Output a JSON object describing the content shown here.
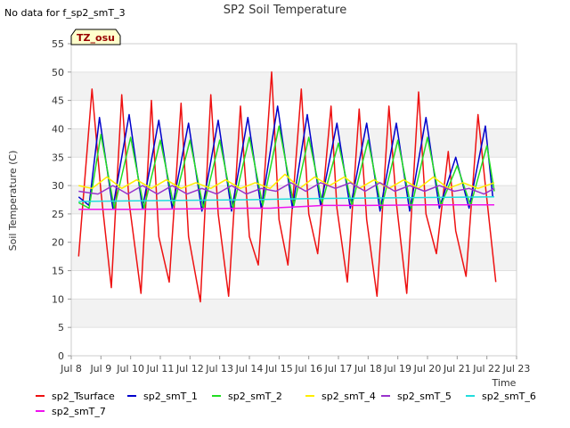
{
  "chart_data": {
    "type": "line",
    "title": "SP2 Soil Temperature",
    "note": "No data for f_sp2_smT_3",
    "badge": "TZ_osu",
    "xlabel": "Time",
    "ylabel": "Soil Temperature (C)",
    "xlim": [
      8,
      23
    ],
    "ylim": [
      0,
      55
    ],
    "x_ticks": [
      8,
      9,
      10,
      11,
      12,
      13,
      14,
      15,
      16,
      17,
      18,
      19,
      20,
      21,
      22,
      23
    ],
    "x_tick_labels": [
      "Jul 8",
      "Jul 9",
      "Jul 10",
      "Jul 11",
      "Jul 12",
      "Jul 13",
      "Jul 14",
      "Jul 15",
      "Jul 16",
      "Jul 17",
      "Jul 18",
      "Jul 19",
      "Jul 20",
      "Jul 21",
      "Jul 22",
      "Jul 23"
    ],
    "y_ticks": [
      0,
      5,
      10,
      15,
      20,
      25,
      30,
      35,
      40,
      45,
      50,
      55
    ],
    "y_tick_labels": [
      "0",
      "5",
      "10",
      "15",
      "20",
      "25",
      "30",
      "35",
      "40",
      "45",
      "50",
      "55"
    ],
    "grid": "horizontal bands",
    "legend_position": "bottom",
    "series": [
      {
        "name": "sp2_Tsurface",
        "color": "#ee1111",
        "x": [
          8.25,
          8.7,
          9.0,
          9.35,
          9.7,
          9.95,
          10.35,
          10.7,
          10.95,
          11.3,
          11.7,
          11.95,
          12.35,
          12.7,
          12.95,
          13.3,
          13.7,
          14.0,
          14.3,
          14.75,
          15.0,
          15.3,
          15.75,
          16.0,
          16.3,
          16.75,
          16.95,
          17.3,
          17.7,
          17.95,
          18.3,
          18.7,
          18.95,
          19.3,
          19.7,
          19.95,
          20.3,
          20.7,
          20.95,
          21.3,
          21.7,
          21.95,
          22.3
        ],
        "y": [
          17.5,
          47,
          29,
          12,
          46,
          27,
          11,
          45,
          21,
          13,
          44.5,
          21,
          9.5,
          46,
          25,
          10.5,
          44,
          21,
          16,
          50,
          24,
          16,
          47,
          25,
          18,
          44,
          26,
          13,
          43.5,
          24,
          10.5,
          44,
          27,
          11,
          46.5,
          25,
          18,
          36,
          22,
          14,
          42.5,
          30,
          13
        ]
      },
      {
        "name": "sp2_smT_1",
        "color": "#0000cc",
        "x": [
          8.25,
          8.6,
          8.95,
          9.4,
          9.95,
          10.4,
          10.95,
          11.4,
          11.95,
          12.4,
          12.95,
          13.4,
          13.95,
          14.4,
          14.95,
          15.45,
          15.95,
          16.4,
          16.95,
          17.4,
          17.95,
          18.4,
          18.95,
          19.4,
          19.95,
          20.4,
          20.95,
          21.4,
          21.95,
          22.2
        ],
        "y": [
          28,
          26.5,
          42,
          26,
          42.5,
          26,
          41.5,
          26,
          41,
          25.5,
          41.5,
          25.5,
          42,
          26,
          44,
          26,
          42.5,
          26.5,
          41,
          26,
          41,
          25.5,
          41,
          25.5,
          42,
          26,
          35,
          26,
          40.5,
          28
        ]
      },
      {
        "name": "sp2_smT_2",
        "color": "#22dd22",
        "x": [
          8.25,
          8.6,
          9.0,
          9.45,
          10.0,
          10.45,
          11.0,
          11.45,
          12.0,
          12.45,
          13.0,
          13.45,
          14.0,
          14.45,
          15.0,
          15.5,
          16.0,
          16.45,
          17.0,
          17.45,
          18.0,
          18.45,
          19.0,
          19.45,
          20.0,
          20.45,
          21.0,
          21.45,
          22.0,
          22.25
        ],
        "y": [
          27,
          26,
          39,
          26,
          38.5,
          26,
          38,
          26.5,
          38,
          26,
          38,
          26,
          38.5,
          26.5,
          40.5,
          26.5,
          38.5,
          27,
          37.5,
          26.5,
          38,
          26,
          38,
          26,
          38.5,
          26.5,
          33.5,
          26.5,
          37,
          29
        ]
      },
      {
        "name": "sp2_smT_4",
        "color": "#ffee00",
        "x": [
          8.25,
          8.7,
          9.2,
          9.7,
          10.2,
          10.7,
          11.2,
          11.7,
          12.2,
          12.7,
          13.2,
          13.7,
          14.2,
          14.7,
          15.2,
          15.7,
          16.2,
          16.7,
          17.2,
          17.7,
          18.2,
          18.7,
          19.2,
          19.7,
          20.2,
          20.7,
          21.2,
          21.7,
          22.25
        ],
        "y": [
          30,
          29.5,
          31.5,
          29.5,
          31,
          29.5,
          31,
          29.5,
          30.5,
          29.5,
          31,
          29.5,
          30.5,
          29.5,
          32,
          29.5,
          31.5,
          30,
          31.5,
          29.5,
          31,
          29.5,
          31,
          29.5,
          31.5,
          29.5,
          30.5,
          29.5,
          30.5
        ]
      },
      {
        "name": "sp2_smT_5",
        "color": "#9933cc",
        "x": [
          8.25,
          8.9,
          9.4,
          9.9,
          10.4,
          10.9,
          11.4,
          11.9,
          12.4,
          12.9,
          13.4,
          13.9,
          14.4,
          14.9,
          15.4,
          15.9,
          16.4,
          16.9,
          17.4,
          17.9,
          18.4,
          18.9,
          19.4,
          19.9,
          20.4,
          20.9,
          21.4,
          21.9,
          22.25
        ],
        "y": [
          29,
          28.5,
          30,
          28.5,
          30,
          28.5,
          30,
          28.5,
          29.5,
          28.5,
          30,
          28.5,
          29.5,
          29,
          30.5,
          29,
          30.5,
          29.5,
          30.5,
          29,
          30.5,
          29,
          30,
          29,
          30,
          29,
          29.5,
          28.5,
          29.5
        ]
      },
      {
        "name": "sp2_smT_6",
        "color": "#22dddd",
        "x": [
          8.25,
          10.0,
          12.0,
          14.0,
          16.0,
          18.0,
          20.0,
          22.25
        ],
        "y": [
          27.2,
          27.3,
          27.4,
          27.5,
          27.7,
          27.8,
          27.9,
          28
        ]
      },
      {
        "name": "sp2_smT_7",
        "color": "#ee11ee",
        "x": [
          8.25,
          10.0,
          12.0,
          14.0,
          14.7,
          15.0,
          15.8,
          16.5,
          18.0,
          20.0,
          22.25
        ],
        "y": [
          25.8,
          25.8,
          25.9,
          26,
          26,
          26.1,
          26.3,
          26.5,
          26.5,
          26.6,
          26.6
        ]
      }
    ]
  }
}
